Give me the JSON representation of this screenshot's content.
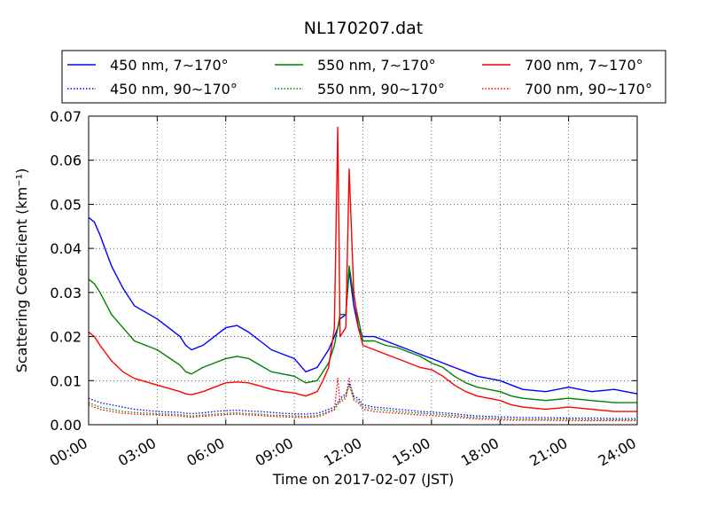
{
  "chart_data": {
    "type": "line",
    "title": "NL170207.dat",
    "xlabel": "Time on 2017-02-07 (JST)",
    "ylabel": "Scattering Coefficient (km⁻¹)",
    "xlim": [
      0,
      24
    ],
    "ylim": [
      0,
      0.07
    ],
    "grid": true,
    "legend_position": "top",
    "x_ticks": [
      {
        "value": 0,
        "label": "00:00"
      },
      {
        "value": 3,
        "label": "03:00"
      },
      {
        "value": 6,
        "label": "06:00"
      },
      {
        "value": 9,
        "label": "09:00"
      },
      {
        "value": 12,
        "label": "12:00"
      },
      {
        "value": 15,
        "label": "15:00"
      },
      {
        "value": 18,
        "label": "18:00"
      },
      {
        "value": 21,
        "label": "21:00"
      },
      {
        "value": 24,
        "label": "24:00"
      }
    ],
    "y_ticks": [
      {
        "value": 0,
        "label": "0.00"
      },
      {
        "value": 0.01,
        "label": "0.01"
      },
      {
        "value": 0.02,
        "label": "0.02"
      },
      {
        "value": 0.03,
        "label": "0.03"
      },
      {
        "value": 0.04,
        "label": "0.04"
      },
      {
        "value": 0.05,
        "label": "0.05"
      },
      {
        "value": 0.06,
        "label": "0.06"
      },
      {
        "value": 0.07,
        "label": "0.07"
      }
    ],
    "x": [
      0,
      0.25,
      0.5,
      1,
      1.5,
      2,
      3,
      4,
      4.25,
      4.5,
      5,
      5.5,
      6,
      6.5,
      7,
      7.5,
      8,
      8.5,
      9,
      9.5,
      10,
      10.25,
      10.5,
      10.75,
      10.9,
      11,
      11.25,
      11.4,
      11.6,
      11.8,
      12,
      12.5,
      13,
      13.5,
      14,
      14.5,
      15,
      15.5,
      16,
      16.5,
      17,
      17.5,
      18,
      18.5,
      19,
      20,
      21,
      22,
      23,
      24
    ],
    "series": [
      {
        "name": "450 nm, 7∼170°",
        "color": "#0000ff",
        "style": "solid",
        "values": [
          0.047,
          0.046,
          0.043,
          0.036,
          0.031,
          0.027,
          0.024,
          0.02,
          0.018,
          0.017,
          0.018,
          0.02,
          0.022,
          0.0225,
          0.021,
          0.019,
          0.017,
          0.016,
          0.015,
          0.012,
          0.013,
          0.015,
          0.017,
          0.02,
          0.022,
          0.024,
          0.025,
          0.035,
          0.027,
          0.022,
          0.02,
          0.02,
          0.019,
          0.018,
          0.017,
          0.016,
          0.015,
          0.014,
          0.013,
          0.012,
          0.011,
          0.0105,
          0.01,
          0.009,
          0.008,
          0.0075,
          0.0085,
          0.0075,
          0.008,
          0.007
        ]
      },
      {
        "name": "450 nm, 90∼170°",
        "color": "#0000ff",
        "style": "dotted",
        "values": [
          0.006,
          0.0055,
          0.005,
          0.0045,
          0.004,
          0.0035,
          0.003,
          0.0028,
          0.0026,
          0.0025,
          0.0027,
          0.003,
          0.0032,
          0.0033,
          0.0031,
          0.003,
          0.0028,
          0.0026,
          0.0025,
          0.0024,
          0.0026,
          0.003,
          0.0035,
          0.004,
          0.005,
          0.006,
          0.007,
          0.0095,
          0.0065,
          0.006,
          0.0045,
          0.004,
          0.0038,
          0.0035,
          0.0033,
          0.003,
          0.0029,
          0.0027,
          0.0025,
          0.0022,
          0.002,
          0.0019,
          0.0018,
          0.0017,
          0.0016,
          0.0016,
          0.0015,
          0.0015,
          0.0014,
          0.0014
        ]
      },
      {
        "name": "550 nm, 7∼170°",
        "color": "#008000",
        "style": "solid",
        "values": [
          0.033,
          0.032,
          0.03,
          0.025,
          0.022,
          0.019,
          0.017,
          0.0135,
          0.012,
          0.0115,
          0.013,
          0.014,
          0.015,
          0.0155,
          0.015,
          0.0135,
          0.012,
          0.0115,
          0.011,
          0.0095,
          0.01,
          0.012,
          0.014,
          0.018,
          0.022,
          0.025,
          0.025,
          0.036,
          0.029,
          0.024,
          0.019,
          0.019,
          0.018,
          0.0175,
          0.0165,
          0.0155,
          0.014,
          0.013,
          0.011,
          0.0095,
          0.0085,
          0.008,
          0.0075,
          0.0065,
          0.006,
          0.0055,
          0.006,
          0.0055,
          0.005,
          0.005
        ]
      },
      {
        "name": "550 nm, 90∼170°",
        "color": "#008000",
        "style": "dotted",
        "values": [
          0.005,
          0.0045,
          0.004,
          0.0035,
          0.003,
          0.0028,
          0.0025,
          0.0023,
          0.0021,
          0.002,
          0.0022,
          0.0024,
          0.0026,
          0.0027,
          0.0025,
          0.0024,
          0.0022,
          0.0021,
          0.002,
          0.0019,
          0.0021,
          0.0025,
          0.003,
          0.0035,
          0.0045,
          0.0055,
          0.0065,
          0.009,
          0.006,
          0.0055,
          0.004,
          0.0035,
          0.0033,
          0.003,
          0.0028,
          0.0026,
          0.0025,
          0.0023,
          0.0021,
          0.0018,
          0.0016,
          0.0015,
          0.0014,
          0.0013,
          0.0012,
          0.0012,
          0.0012,
          0.0011,
          0.0011,
          0.0011
        ]
      },
      {
        "name": "700 nm, 7∼170°",
        "color": "#ff0000",
        "style": "solid",
        "values": [
          0.021,
          0.02,
          0.018,
          0.0145,
          0.012,
          0.0105,
          0.009,
          0.0075,
          0.007,
          0.0068,
          0.0075,
          0.0085,
          0.0095,
          0.0097,
          0.0095,
          0.0088,
          0.008,
          0.0075,
          0.0072,
          0.0065,
          0.0075,
          0.01,
          0.013,
          0.022,
          0.0675,
          0.02,
          0.022,
          0.058,
          0.03,
          0.022,
          0.018,
          0.017,
          0.016,
          0.015,
          0.014,
          0.013,
          0.0125,
          0.011,
          0.009,
          0.0075,
          0.0065,
          0.006,
          0.0055,
          0.0045,
          0.004,
          0.0035,
          0.004,
          0.0035,
          0.003,
          0.003
        ]
      },
      {
        "name": "700 nm, 90∼170°",
        "color": "#ff0000",
        "style": "dotted",
        "values": [
          0.0045,
          0.004,
          0.0035,
          0.003,
          0.0026,
          0.0024,
          0.0022,
          0.002,
          0.0018,
          0.0017,
          0.0019,
          0.0021,
          0.0023,
          0.0024,
          0.0022,
          0.0021,
          0.0019,
          0.0018,
          0.0017,
          0.0016,
          0.0018,
          0.0022,
          0.0028,
          0.0033,
          0.0105,
          0.005,
          0.006,
          0.0105,
          0.0055,
          0.005,
          0.0035,
          0.003,
          0.0028,
          0.0026,
          0.0024,
          0.0022,
          0.0021,
          0.0019,
          0.0017,
          0.0015,
          0.0013,
          0.0012,
          0.0011,
          0.001,
          0.001,
          0.001,
          0.0009,
          0.0009,
          0.0009,
          0.0009
        ]
      }
    ]
  }
}
